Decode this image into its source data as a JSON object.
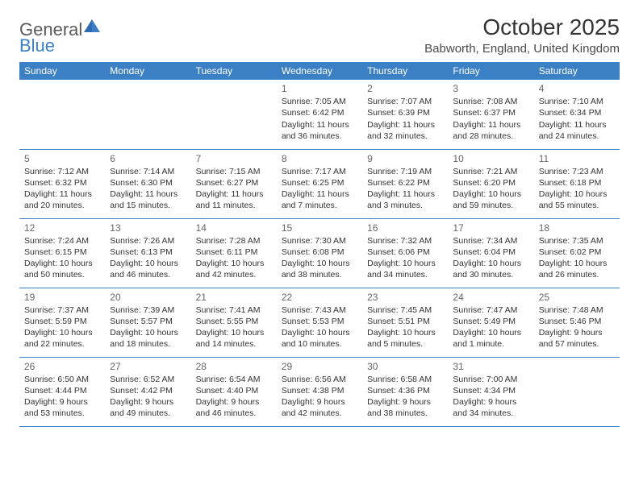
{
  "logo": {
    "word1": "General",
    "word2": "Blue"
  },
  "title": "October 2025",
  "location": "Babworth, England, United Kingdom",
  "colors": {
    "header_bg": "#3b7fc4",
    "header_text": "#ffffff",
    "rule": "#3b7fc4",
    "text": "#333333",
    "daynum": "#666666",
    "logo_gray": "#5a5a5a",
    "logo_blue": "#3b7fc4",
    "background": "#ffffff"
  },
  "day_headers": [
    "Sunday",
    "Monday",
    "Tuesday",
    "Wednesday",
    "Thursday",
    "Friday",
    "Saturday"
  ],
  "weeks": [
    [
      null,
      null,
      null,
      {
        "n": "1",
        "sr": "7:05 AM",
        "ss": "6:42 PM",
        "dl": "11 hours and 36 minutes."
      },
      {
        "n": "2",
        "sr": "7:07 AM",
        "ss": "6:39 PM",
        "dl": "11 hours and 32 minutes."
      },
      {
        "n": "3",
        "sr": "7:08 AM",
        "ss": "6:37 PM",
        "dl": "11 hours and 28 minutes."
      },
      {
        "n": "4",
        "sr": "7:10 AM",
        "ss": "6:34 PM",
        "dl": "11 hours and 24 minutes."
      }
    ],
    [
      {
        "n": "5",
        "sr": "7:12 AM",
        "ss": "6:32 PM",
        "dl": "11 hours and 20 minutes."
      },
      {
        "n": "6",
        "sr": "7:14 AM",
        "ss": "6:30 PM",
        "dl": "11 hours and 15 minutes."
      },
      {
        "n": "7",
        "sr": "7:15 AM",
        "ss": "6:27 PM",
        "dl": "11 hours and 11 minutes."
      },
      {
        "n": "8",
        "sr": "7:17 AM",
        "ss": "6:25 PM",
        "dl": "11 hours and 7 minutes."
      },
      {
        "n": "9",
        "sr": "7:19 AM",
        "ss": "6:22 PM",
        "dl": "11 hours and 3 minutes."
      },
      {
        "n": "10",
        "sr": "7:21 AM",
        "ss": "6:20 PM",
        "dl": "10 hours and 59 minutes."
      },
      {
        "n": "11",
        "sr": "7:23 AM",
        "ss": "6:18 PM",
        "dl": "10 hours and 55 minutes."
      }
    ],
    [
      {
        "n": "12",
        "sr": "7:24 AM",
        "ss": "6:15 PM",
        "dl": "10 hours and 50 minutes."
      },
      {
        "n": "13",
        "sr": "7:26 AM",
        "ss": "6:13 PM",
        "dl": "10 hours and 46 minutes."
      },
      {
        "n": "14",
        "sr": "7:28 AM",
        "ss": "6:11 PM",
        "dl": "10 hours and 42 minutes."
      },
      {
        "n": "15",
        "sr": "7:30 AM",
        "ss": "6:08 PM",
        "dl": "10 hours and 38 minutes."
      },
      {
        "n": "16",
        "sr": "7:32 AM",
        "ss": "6:06 PM",
        "dl": "10 hours and 34 minutes."
      },
      {
        "n": "17",
        "sr": "7:34 AM",
        "ss": "6:04 PM",
        "dl": "10 hours and 30 minutes."
      },
      {
        "n": "18",
        "sr": "7:35 AM",
        "ss": "6:02 PM",
        "dl": "10 hours and 26 minutes."
      }
    ],
    [
      {
        "n": "19",
        "sr": "7:37 AM",
        "ss": "5:59 PM",
        "dl": "10 hours and 22 minutes."
      },
      {
        "n": "20",
        "sr": "7:39 AM",
        "ss": "5:57 PM",
        "dl": "10 hours and 18 minutes."
      },
      {
        "n": "21",
        "sr": "7:41 AM",
        "ss": "5:55 PM",
        "dl": "10 hours and 14 minutes."
      },
      {
        "n": "22",
        "sr": "7:43 AM",
        "ss": "5:53 PM",
        "dl": "10 hours and 10 minutes."
      },
      {
        "n": "23",
        "sr": "7:45 AM",
        "ss": "5:51 PM",
        "dl": "10 hours and 5 minutes."
      },
      {
        "n": "24",
        "sr": "7:47 AM",
        "ss": "5:49 PM",
        "dl": "10 hours and 1 minute."
      },
      {
        "n": "25",
        "sr": "7:48 AM",
        "ss": "5:46 PM",
        "dl": "9 hours and 57 minutes."
      }
    ],
    [
      {
        "n": "26",
        "sr": "6:50 AM",
        "ss": "4:44 PM",
        "dl": "9 hours and 53 minutes."
      },
      {
        "n": "27",
        "sr": "6:52 AM",
        "ss": "4:42 PM",
        "dl": "9 hours and 49 minutes."
      },
      {
        "n": "28",
        "sr": "6:54 AM",
        "ss": "4:40 PM",
        "dl": "9 hours and 46 minutes."
      },
      {
        "n": "29",
        "sr": "6:56 AM",
        "ss": "4:38 PM",
        "dl": "9 hours and 42 minutes."
      },
      {
        "n": "30",
        "sr": "6:58 AM",
        "ss": "4:36 PM",
        "dl": "9 hours and 38 minutes."
      },
      {
        "n": "31",
        "sr": "7:00 AM",
        "ss": "4:34 PM",
        "dl": "9 hours and 34 minutes."
      },
      null
    ]
  ],
  "labels": {
    "sunrise": "Sunrise:",
    "sunset": "Sunset:",
    "daylight": "Daylight:"
  }
}
